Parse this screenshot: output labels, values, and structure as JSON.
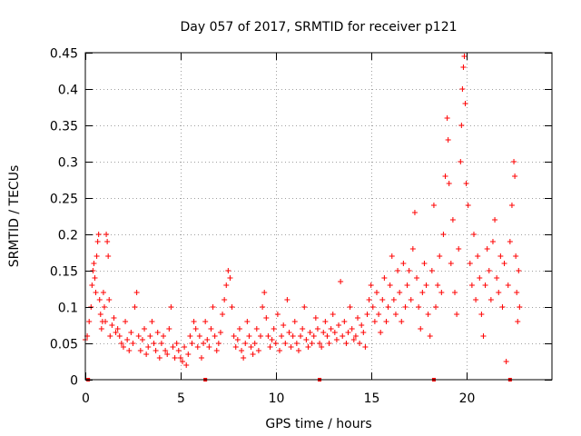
{
  "chart_data": {
    "type": "scatter",
    "title": "Day 057 of 2017, SRMTID for receiver p121",
    "xlabel": "GPS time / hours",
    "ylabel": "SRMTID / TECUs",
    "xlim": [
      0,
      24.5
    ],
    "ylim": [
      0,
      0.45
    ],
    "x_ticks": [
      0,
      5,
      10,
      15,
      20
    ],
    "x_tick_labels": [
      "0",
      "5",
      "10",
      "15",
      "20"
    ],
    "y_ticks": [
      0,
      0.05,
      0.1,
      0.15,
      0.2,
      0.25,
      0.3,
      0.35,
      0.4,
      0.45
    ],
    "y_tick_labels": [
      "0",
      "0.05",
      "0.1",
      "0.15",
      "0.2",
      "0.25",
      "0.3",
      "0.35",
      "0.4",
      "0.45"
    ],
    "grid": true,
    "marker": "+",
    "color": "#ff0000",
    "baseline_markers_x": [
      0.15,
      6.3,
      12.3,
      18.3,
      22.3
    ],
    "series": [
      {
        "name": "SRMTID",
        "points": [
          [
            0.0,
            0.055
          ],
          [
            0.1,
            0.06
          ],
          [
            0.2,
            0.08
          ],
          [
            0.3,
            0.1
          ],
          [
            0.35,
            0.13
          ],
          [
            0.4,
            0.15
          ],
          [
            0.45,
            0.16
          ],
          [
            0.5,
            0.14
          ],
          [
            0.55,
            0.12
          ],
          [
            0.6,
            0.17
          ],
          [
            0.65,
            0.19
          ],
          [
            0.7,
            0.2
          ],
          [
            0.75,
            0.11
          ],
          [
            0.8,
            0.09
          ],
          [
            0.85,
            0.07
          ],
          [
            0.9,
            0.08
          ],
          [
            0.95,
            0.12
          ],
          [
            1.0,
            0.1
          ],
          [
            1.05,
            0.08
          ],
          [
            1.1,
            0.2
          ],
          [
            1.15,
            0.19
          ],
          [
            1.2,
            0.17
          ],
          [
            1.25,
            0.11
          ],
          [
            1.3,
            0.06
          ],
          [
            1.4,
            0.075
          ],
          [
            1.5,
            0.085
          ],
          [
            1.6,
            0.065
          ],
          [
            1.7,
            0.07
          ],
          [
            1.8,
            0.06
          ],
          [
            1.9,
            0.05
          ],
          [
            2.0,
            0.045
          ],
          [
            2.1,
            0.08
          ],
          [
            2.2,
            0.055
          ],
          [
            2.3,
            0.04
          ],
          [
            2.4,
            0.065
          ],
          [
            2.5,
            0.05
          ],
          [
            2.6,
            0.1
          ],
          [
            2.7,
            0.12
          ],
          [
            2.8,
            0.06
          ],
          [
            2.9,
            0.04
          ],
          [
            3.0,
            0.055
          ],
          [
            3.1,
            0.07
          ],
          [
            3.2,
            0.035
          ],
          [
            3.3,
            0.045
          ],
          [
            3.4,
            0.06
          ],
          [
            3.5,
            0.08
          ],
          [
            3.6,
            0.05
          ],
          [
            3.7,
            0.04
          ],
          [
            3.8,
            0.065
          ],
          [
            3.9,
            0.03
          ],
          [
            4.0,
            0.05
          ],
          [
            4.1,
            0.06
          ],
          [
            4.2,
            0.04
          ],
          [
            4.3,
            0.035
          ],
          [
            4.4,
            0.07
          ],
          [
            4.5,
            0.1
          ],
          [
            4.6,
            0.045
          ],
          [
            4.7,
            0.03
          ],
          [
            4.8,
            0.05
          ],
          [
            4.9,
            0.04
          ],
          [
            5.0,
            0.03
          ],
          [
            5.1,
            0.025
          ],
          [
            5.2,
            0.045
          ],
          [
            5.3,
            0.02
          ],
          [
            5.4,
            0.035
          ],
          [
            5.5,
            0.06
          ],
          [
            5.6,
            0.05
          ],
          [
            5.7,
            0.08
          ],
          [
            5.8,
            0.07
          ],
          [
            5.9,
            0.045
          ],
          [
            6.0,
            0.06
          ],
          [
            6.1,
            0.03
          ],
          [
            6.2,
            0.05
          ],
          [
            6.3,
            0.08
          ],
          [
            6.4,
            0.055
          ],
          [
            6.5,
            0.045
          ],
          [
            6.6,
            0.07
          ],
          [
            6.7,
            0.1
          ],
          [
            6.8,
            0.06
          ],
          [
            6.9,
            0.04
          ],
          [
            7.0,
            0.05
          ],
          [
            7.1,
            0.065
          ],
          [
            7.2,
            0.09
          ],
          [
            7.3,
            0.11
          ],
          [
            7.4,
            0.13
          ],
          [
            7.5,
            0.15
          ],
          [
            7.6,
            0.14
          ],
          [
            7.7,
            0.1
          ],
          [
            7.8,
            0.06
          ],
          [
            7.9,
            0.045
          ],
          [
            8.0,
            0.055
          ],
          [
            8.1,
            0.07
          ],
          [
            8.2,
            0.04
          ],
          [
            8.3,
            0.03
          ],
          [
            8.4,
            0.05
          ],
          [
            8.5,
            0.08
          ],
          [
            8.6,
            0.06
          ],
          [
            8.7,
            0.045
          ],
          [
            8.8,
            0.035
          ],
          [
            8.9,
            0.05
          ],
          [
            9.0,
            0.07
          ],
          [
            9.1,
            0.04
          ],
          [
            9.2,
            0.06
          ],
          [
            9.3,
            0.1
          ],
          [
            9.4,
            0.12
          ],
          [
            9.5,
            0.085
          ],
          [
            9.6,
            0.06
          ],
          [
            9.7,
            0.045
          ],
          [
            9.8,
            0.055
          ],
          [
            9.9,
            0.07
          ],
          [
            10.0,
            0.05
          ],
          [
            10.1,
            0.09
          ],
          [
            10.2,
            0.04
          ],
          [
            10.3,
            0.06
          ],
          [
            10.4,
            0.075
          ],
          [
            10.5,
            0.05
          ],
          [
            10.6,
            0.11
          ],
          [
            10.7,
            0.065
          ],
          [
            10.8,
            0.045
          ],
          [
            10.9,
            0.06
          ],
          [
            11.0,
            0.08
          ],
          [
            11.1,
            0.05
          ],
          [
            11.2,
            0.04
          ],
          [
            11.3,
            0.06
          ],
          [
            11.4,
            0.07
          ],
          [
            11.5,
            0.1
          ],
          [
            11.6,
            0.055
          ],
          [
            11.7,
            0.045
          ],
          [
            11.8,
            0.065
          ],
          [
            11.9,
            0.05
          ],
          [
            12.0,
            0.06
          ],
          [
            12.1,
            0.085
          ],
          [
            12.2,
            0.07
          ],
          [
            12.3,
            0.05
          ],
          [
            12.4,
            0.045
          ],
          [
            12.5,
            0.065
          ],
          [
            12.6,
            0.08
          ],
          [
            12.7,
            0.06
          ],
          [
            12.8,
            0.05
          ],
          [
            12.9,
            0.07
          ],
          [
            13.0,
            0.09
          ],
          [
            13.1,
            0.065
          ],
          [
            13.2,
            0.055
          ],
          [
            13.3,
            0.075
          ],
          [
            13.4,
            0.135
          ],
          [
            13.5,
            0.06
          ],
          [
            13.6,
            0.08
          ],
          [
            13.7,
            0.05
          ],
          [
            13.8,
            0.065
          ],
          [
            13.9,
            0.1
          ],
          [
            14.0,
            0.07
          ],
          [
            14.1,
            0.055
          ],
          [
            14.2,
            0.06
          ],
          [
            14.3,
            0.085
          ],
          [
            14.4,
            0.05
          ],
          [
            14.5,
            0.075
          ],
          [
            14.6,
            0.065
          ],
          [
            14.7,
            0.045
          ],
          [
            14.8,
            0.09
          ],
          [
            14.9,
            0.11
          ],
          [
            15.0,
            0.13
          ],
          [
            15.1,
            0.1
          ],
          [
            15.2,
            0.08
          ],
          [
            15.3,
            0.12
          ],
          [
            15.4,
            0.09
          ],
          [
            15.5,
            0.065
          ],
          [
            15.6,
            0.11
          ],
          [
            15.7,
            0.14
          ],
          [
            15.8,
            0.08
          ],
          [
            15.9,
            0.1
          ],
          [
            16.0,
            0.13
          ],
          [
            16.1,
            0.17
          ],
          [
            16.2,
            0.11
          ],
          [
            16.3,
            0.09
          ],
          [
            16.4,
            0.15
          ],
          [
            16.5,
            0.12
          ],
          [
            16.6,
            0.08
          ],
          [
            16.7,
            0.16
          ],
          [
            16.8,
            0.1
          ],
          [
            16.9,
            0.13
          ],
          [
            17.0,
            0.15
          ],
          [
            17.1,
            0.11
          ],
          [
            17.2,
            0.18
          ],
          [
            17.3,
            0.23
          ],
          [
            17.4,
            0.14
          ],
          [
            17.5,
            0.1
          ],
          [
            17.6,
            0.07
          ],
          [
            17.7,
            0.12
          ],
          [
            17.8,
            0.16
          ],
          [
            17.9,
            0.13
          ],
          [
            18.0,
            0.09
          ],
          [
            18.1,
            0.06
          ],
          [
            18.2,
            0.15
          ],
          [
            18.3,
            0.24
          ],
          [
            18.4,
            0.1
          ],
          [
            18.5,
            0.13
          ],
          [
            18.6,
            0.17
          ],
          [
            18.7,
            0.12
          ],
          [
            18.8,
            0.2
          ],
          [
            18.9,
            0.28
          ],
          [
            19.0,
            0.36
          ],
          [
            19.05,
            0.33
          ],
          [
            19.1,
            0.27
          ],
          [
            19.2,
            0.16
          ],
          [
            19.3,
            0.22
          ],
          [
            19.4,
            0.12
          ],
          [
            19.5,
            0.09
          ],
          [
            19.6,
            0.18
          ],
          [
            19.7,
            0.3
          ],
          [
            19.75,
            0.35
          ],
          [
            19.8,
            0.4
          ],
          [
            19.85,
            0.43
          ],
          [
            19.9,
            0.445
          ],
          [
            19.95,
            0.38
          ],
          [
            20.0,
            0.27
          ],
          [
            20.1,
            0.24
          ],
          [
            20.2,
            0.16
          ],
          [
            20.3,
            0.13
          ],
          [
            20.4,
            0.2
          ],
          [
            20.5,
            0.11
          ],
          [
            20.6,
            0.17
          ],
          [
            20.7,
            0.14
          ],
          [
            20.8,
            0.09
          ],
          [
            20.9,
            0.06
          ],
          [
            21.0,
            0.13
          ],
          [
            21.1,
            0.18
          ],
          [
            21.2,
            0.15
          ],
          [
            21.3,
            0.11
          ],
          [
            21.4,
            0.19
          ],
          [
            21.5,
            0.22
          ],
          [
            21.6,
            0.14
          ],
          [
            21.7,
            0.12
          ],
          [
            21.8,
            0.17
          ],
          [
            21.9,
            0.1
          ],
          [
            22.0,
            0.16
          ],
          [
            22.1,
            0.025
          ],
          [
            22.2,
            0.13
          ],
          [
            22.3,
            0.19
          ],
          [
            22.4,
            0.24
          ],
          [
            22.5,
            0.3
          ],
          [
            22.55,
            0.28
          ],
          [
            22.6,
            0.17
          ],
          [
            22.65,
            0.12
          ],
          [
            22.7,
            0.08
          ],
          [
            22.75,
            0.15
          ],
          [
            22.8,
            0.1
          ]
        ]
      }
    ]
  }
}
